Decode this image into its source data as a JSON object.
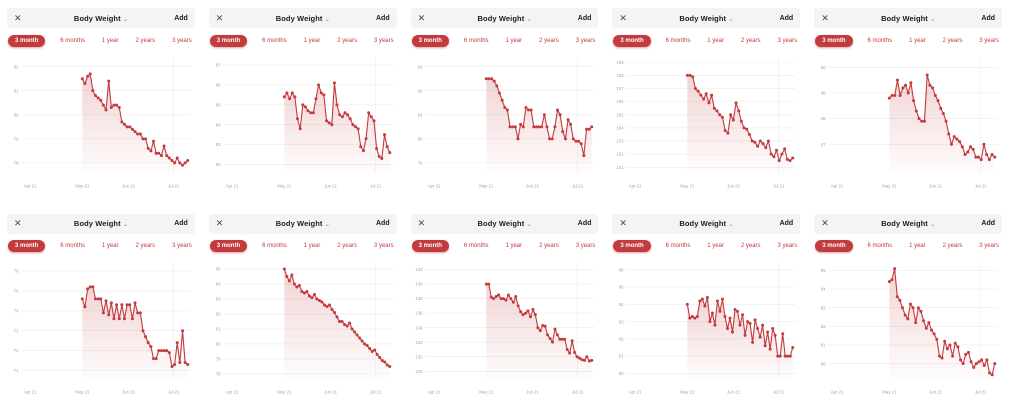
{
  "header": {
    "title": "Body Weight",
    "chevron": "⌄",
    "close_glyph": "✕",
    "add_label": "Add"
  },
  "tabs": [
    {
      "label": "3 month",
      "selected": true
    },
    {
      "label": "6 months",
      "selected": false
    },
    {
      "label": "1 year",
      "selected": false
    },
    {
      "label": "2 years",
      "selected": false
    },
    {
      "label": "3 years",
      "selected": false
    }
  ],
  "months": [
    "Apr 21",
    "May 21",
    "Jun 21",
    "Jul 21"
  ],
  "colors": {
    "accent": "#c23b3e",
    "header_bg": "#f4f4f6",
    "title_text": "#1c1c1e",
    "grid_line": "#ececec",
    "axis_text": "#a3a3a3"
  },
  "chart_data": [
    {
      "type": "area",
      "title": "Body Weight",
      "x_labels": [
        "Apr 21",
        "May 21",
        "Jun 21",
        "Jul 21"
      ],
      "y_labels": [
        82,
        81,
        80,
        79,
        78
      ],
      "ylim": [
        77.6,
        82.4
      ],
      "values": [
        81.5,
        81.3,
        81.6,
        81.7,
        81.0,
        80.8,
        80.7,
        80.6,
        80.4,
        80.2,
        81.4,
        80.3,
        80.4,
        80.4,
        80.3,
        79.7,
        79.6,
        79.5,
        79.5,
        79.4,
        79.3,
        79.2,
        79.2,
        79.0,
        79.0,
        78.6,
        78.5,
        78.9,
        78.4,
        78.4,
        78.3,
        78.7,
        78.3,
        78.2,
        78.1,
        78.0,
        78.2,
        78.0,
        77.9,
        78.0,
        78.1
      ]
    },
    {
      "type": "area",
      "title": "Body Weight",
      "x_labels": [
        "Apr 21",
        "May 21",
        "Jun 21",
        "Jul 21"
      ],
      "y_labels": [
        87,
        86,
        85,
        84,
        83,
        82
      ],
      "ylim": [
        81.6,
        87.4
      ],
      "values": [
        85.4,
        85.6,
        85.3,
        85.6,
        85.4,
        84.3,
        83.8,
        85.0,
        84.9,
        84.7,
        84.6,
        84.6,
        85.3,
        86.0,
        85.6,
        85.5,
        84.2,
        84.1,
        84.0,
        86.1,
        85.0,
        84.5,
        84.4,
        84.6,
        84.5,
        84.3,
        84.0,
        83.9,
        83.8,
        82.9,
        82.7,
        83.3,
        84.6,
        84.4,
        84.2,
        82.8,
        82.4,
        82.3,
        83.5,
        82.9,
        82.6
      ]
    },
    {
      "type": "area",
      "title": "Body Weight",
      "x_labels": [
        "Apr 21",
        "May 21",
        "Jun 21",
        "Jul 21"
      ],
      "y_labels": [
        83,
        82,
        81,
        80,
        79
      ],
      "ylim": [
        78.6,
        83.4
      ],
      "values": [
        82.5,
        82.5,
        82.5,
        82.4,
        82.2,
        81.9,
        81.6,
        81.3,
        81.2,
        80.5,
        80.5,
        80.5,
        80.0,
        80.6,
        80.5,
        81.3,
        81.2,
        81.2,
        80.5,
        80.5,
        80.5,
        80.5,
        81.0,
        80.5,
        80.0,
        80.0,
        80.5,
        81.2,
        81.0,
        80.3,
        80.0,
        80.8,
        80.6,
        80.0,
        79.9,
        79.9,
        79.8,
        79.3,
        80.4,
        80.4,
        80.5
      ]
    },
    {
      "type": "area",
      "title": "Body Weight",
      "x_labels": [
        "Apr 21",
        "May 21",
        "Jun 21",
        "Jul 21"
      ],
      "y_labels": [
        109,
        108,
        107,
        106,
        105,
        104,
        103,
        102,
        101
      ],
      "ylim": [
        100.6,
        109.4
      ],
      "values": [
        108.0,
        108.0,
        107.9,
        107.0,
        106.8,
        106.5,
        106.2,
        106.6,
        105.9,
        106.5,
        105.5,
        105.3,
        105.0,
        104.8,
        103.8,
        103.6,
        105.0,
        104.6,
        105.9,
        105.3,
        104.5,
        104.0,
        103.9,
        103.5,
        103.0,
        102.9,
        102.6,
        103.0,
        102.8,
        102.5,
        103.0,
        102.0,
        101.8,
        102.3,
        101.5,
        102.0,
        102.4,
        101.6,
        101.5,
        101.7
      ]
    },
    {
      "type": "area",
      "title": "Body Weight",
      "x_labels": [
        "Apr 21",
        "May 21",
        "Jun 21",
        "Jul 21"
      ],
      "y_labels": [
        50,
        49,
        48,
        47
      ],
      "ylim": [
        45.9,
        50.4
      ],
      "values": [
        48.8,
        48.9,
        48.9,
        49.5,
        48.9,
        49.2,
        49.3,
        49.0,
        49.4,
        48.7,
        48.3,
        48.0,
        47.9,
        47.9,
        49.7,
        49.3,
        49.2,
        48.9,
        48.7,
        48.4,
        48.2,
        47.9,
        47.4,
        47.0,
        47.3,
        47.2,
        47.1,
        46.9,
        46.6,
        46.7,
        46.9,
        46.8,
        46.5,
        46.5,
        46.4,
        47.0,
        46.6,
        46.4,
        46.6,
        46.5
      ]
    },
    {
      "type": "area",
      "title": "Body Weight",
      "x_labels": [
        "Apr 21",
        "May 21",
        "Jun 21",
        "Jul 21"
      ],
      "y_labels": [
        76,
        75,
        74,
        73,
        72,
        71
      ],
      "ylim": [
        70.6,
        76.4
      ],
      "values": [
        74.6,
        74.2,
        75.1,
        75.2,
        75.2,
        74.6,
        74.6,
        74.6,
        73.9,
        74.5,
        73.8,
        74.4,
        73.6,
        74.3,
        73.6,
        74.3,
        73.6,
        74.3,
        74.3,
        73.6,
        74.4,
        73.9,
        73.9,
        73.0,
        72.7,
        72.4,
        72.2,
        71.6,
        71.6,
        72.0,
        72.0,
        72.0,
        72.0,
        71.9,
        71.2,
        71.3,
        72.4,
        71.4,
        73.0,
        71.4,
        71.3
      ]
    },
    {
      "type": "area",
      "title": "Body Weight",
      "x_labels": [
        "Apr 21",
        "May 21",
        "Jun 21",
        "Jul 21"
      ],
      "y_labels": [
        85,
        84,
        83,
        82,
        81,
        80,
        79,
        78
      ],
      "ylim": [
        77.7,
        85.4
      ],
      "values": [
        85.0,
        84.5,
        84.2,
        84.6,
        84.0,
        83.8,
        83.9,
        83.5,
        83.4,
        83.5,
        83.2,
        83.1,
        83.3,
        83.0,
        82.9,
        82.8,
        82.6,
        82.5,
        82.6,
        82.3,
        82.1,
        81.8,
        81.5,
        81.5,
        81.3,
        81.2,
        81.4,
        81.0,
        80.8,
        80.6,
        80.4,
        80.2,
        80.0,
        79.9,
        79.7,
        79.5,
        79.6,
        79.3,
        79.1,
        78.9,
        78.8,
        78.6,
        78.5
      ]
    },
    {
      "type": "area",
      "title": "Body Weight",
      "x_labels": [
        "Apr 21",
        "May 21",
        "Jun 21",
        "Jul 21"
      ],
      "y_labels": [
        142,
        140,
        138,
        136,
        134,
        132,
        130,
        128
      ],
      "ylim": [
        127.0,
        142.9
      ],
      "values": [
        140.0,
        140.0,
        138.2,
        138.0,
        138.3,
        138.5,
        138.0,
        138.0,
        137.8,
        138.5,
        138.0,
        137.5,
        138.3,
        137.0,
        136.2,
        135.8,
        136.0,
        136.3,
        135.5,
        136.5,
        135.8,
        134.0,
        133.6,
        134.3,
        134.2,
        133.0,
        132.5,
        132.0,
        133.8,
        133.0,
        132.4,
        132.4,
        132.4,
        131.0,
        130.5,
        132.2,
        130.6,
        130.0,
        129.8,
        129.6,
        129.5,
        130.0,
        129.4,
        129.5
      ]
    },
    {
      "type": "area",
      "title": "Body Weight",
      "x_labels": [
        "Apr 21",
        "May 21",
        "Jun 21",
        "Jul 21"
      ],
      "y_labels": [
        86,
        85,
        84,
        83,
        82,
        81,
        80
      ],
      "ylim": [
        79.7,
        86.4
      ],
      "values": [
        84.0,
        83.2,
        83.3,
        83.2,
        83.3,
        84.2,
        84.3,
        83.9,
        84.4,
        83.0,
        83.5,
        82.8,
        84.2,
        83.6,
        84.3,
        83.3,
        82.6,
        83.2,
        82.4,
        83.7,
        83.6,
        82.8,
        83.4,
        82.2,
        83.0,
        82.9,
        81.8,
        83.1,
        82.6,
        82.1,
        82.8,
        81.6,
        82.4,
        81.4,
        82.6,
        82.2,
        81.0,
        81.0,
        82.3,
        81.0,
        81.0,
        81.0,
        81.5
      ]
    },
    {
      "type": "area",
      "title": "Body Weight",
      "x_labels": [
        "Apr 21",
        "May 21",
        "Jun 21",
        "Jul 21"
      ],
      "y_labels": [
        85,
        84,
        83,
        82,
        81,
        80
      ],
      "ylim": [
        79.2,
        85.4
      ],
      "values": [
        84.4,
        84.5,
        85.1,
        83.6,
        83.4,
        83.0,
        82.6,
        82.4,
        83.2,
        83.0,
        82.2,
        83.0,
        82.8,
        82.3,
        81.9,
        82.2,
        81.8,
        81.6,
        81.3,
        80.4,
        80.3,
        81.2,
        80.8,
        81.0,
        80.4,
        81.1,
        80.9,
        80.2,
        80.0,
        80.5,
        80.6,
        80.1,
        79.8,
        80.0,
        80.1,
        80.2,
        79.9,
        80.2,
        79.5,
        79.4,
        80.0
      ]
    }
  ]
}
